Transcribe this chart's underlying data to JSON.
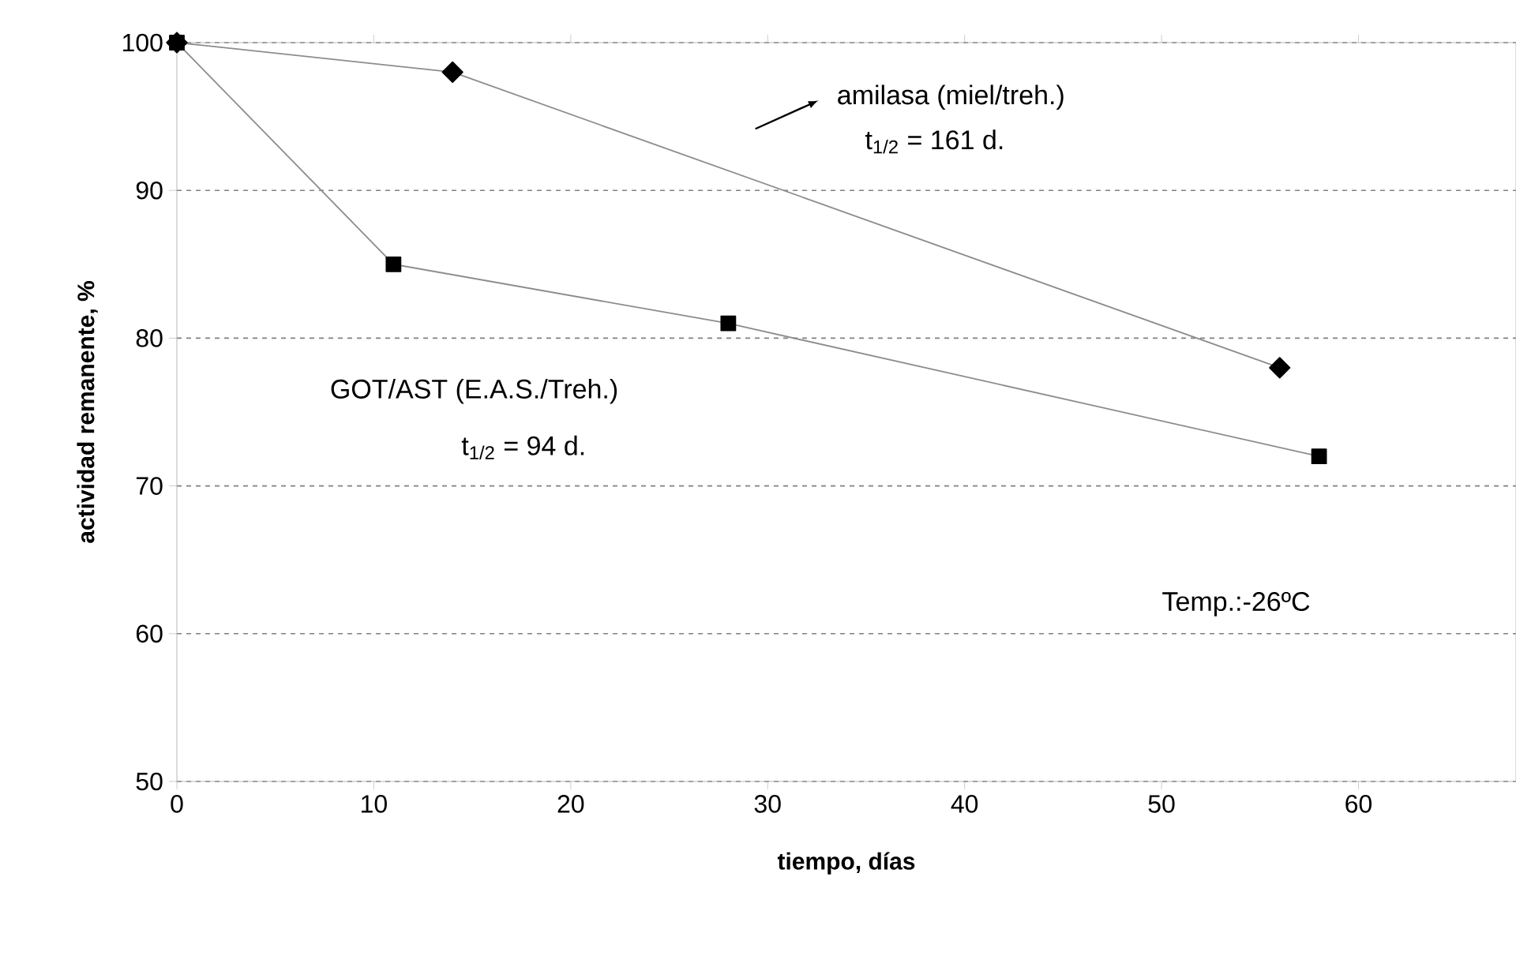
{
  "chart_data": {
    "type": "line",
    "xlabel": "tiempo, días",
    "ylabel": "actividad remanente, %",
    "xlim": [
      0,
      68
    ],
    "ylim": [
      50,
      100
    ],
    "xticks": [
      0,
      10,
      20,
      30,
      40,
      50,
      60
    ],
    "yticks": [
      50,
      60,
      70,
      80,
      90,
      100
    ],
    "grid": "y",
    "series": [
      {
        "color": "#000000",
        "marker": "diamond",
        "x": [
          0,
          14,
          56
        ],
        "values": [
          100,
          98,
          78
        ]
      },
      {
        "color": "#000000",
        "marker": "square",
        "x": [
          0,
          11,
          28,
          58
        ],
        "values": [
          100,
          85,
          81,
          72
        ]
      }
    ],
    "annotations": [
      "amilasa (miel/treh.)",
      "t$_{1/2}$ = 161 d.",
      "GOT/AST (E.A.S./Treh.)",
      "t$_{1/2}$ = 94 d.",
      "Temp.:-26ºC"
    ]
  }
}
